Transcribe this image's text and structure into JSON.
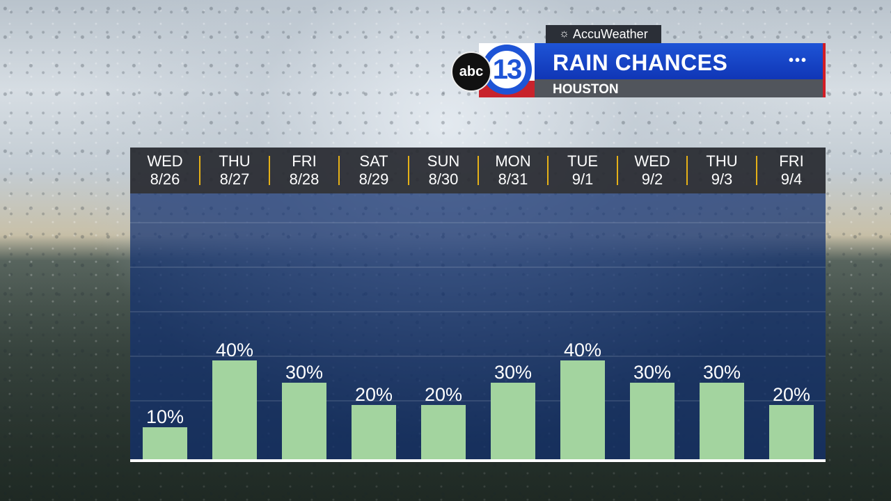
{
  "header": {
    "sponsor": "AccuWeather",
    "network": "abc",
    "station_number": "13",
    "title": "RAIN CHANCES",
    "location": "HOUSTON",
    "menu_glyph": "•••"
  },
  "colors": {
    "bar": "#a3d49f",
    "plot_bg": "#123070",
    "header_bg": "#1e54d6",
    "separator": "#e6b117",
    "accent_red": "#d21d25"
  },
  "chart_data": {
    "type": "bar",
    "categories": [
      "WED 8/26",
      "THU 8/27",
      "FRI 8/28",
      "SAT 8/29",
      "SUN 8/30",
      "MON 8/31",
      "TUE 9/1",
      "WED 9/2",
      "THU 9/3",
      "FRI 9/4"
    ],
    "days": [
      {
        "dow": "WED",
        "date": "8/26"
      },
      {
        "dow": "THU",
        "date": "8/27"
      },
      {
        "dow": "FRI",
        "date": "8/28"
      },
      {
        "dow": "SAT",
        "date": "8/29"
      },
      {
        "dow": "SUN",
        "date": "8/30"
      },
      {
        "dow": "MON",
        "date": "8/31"
      },
      {
        "dow": "TUE",
        "date": "9/1"
      },
      {
        "dow": "WED",
        "date": "9/2"
      },
      {
        "dow": "THU",
        "date": "9/3"
      },
      {
        "dow": "FRI",
        "date": "9/4"
      }
    ],
    "values": [
      10,
      40,
      30,
      20,
      20,
      30,
      40,
      30,
      30,
      20
    ],
    "labels": [
      "10%",
      "40%",
      "30%",
      "20%",
      "20%",
      "30%",
      "40%",
      "30%",
      "30%",
      "20%"
    ],
    "title": "RAIN CHANCES",
    "ylim": [
      0,
      100
    ],
    "grid": true
  }
}
